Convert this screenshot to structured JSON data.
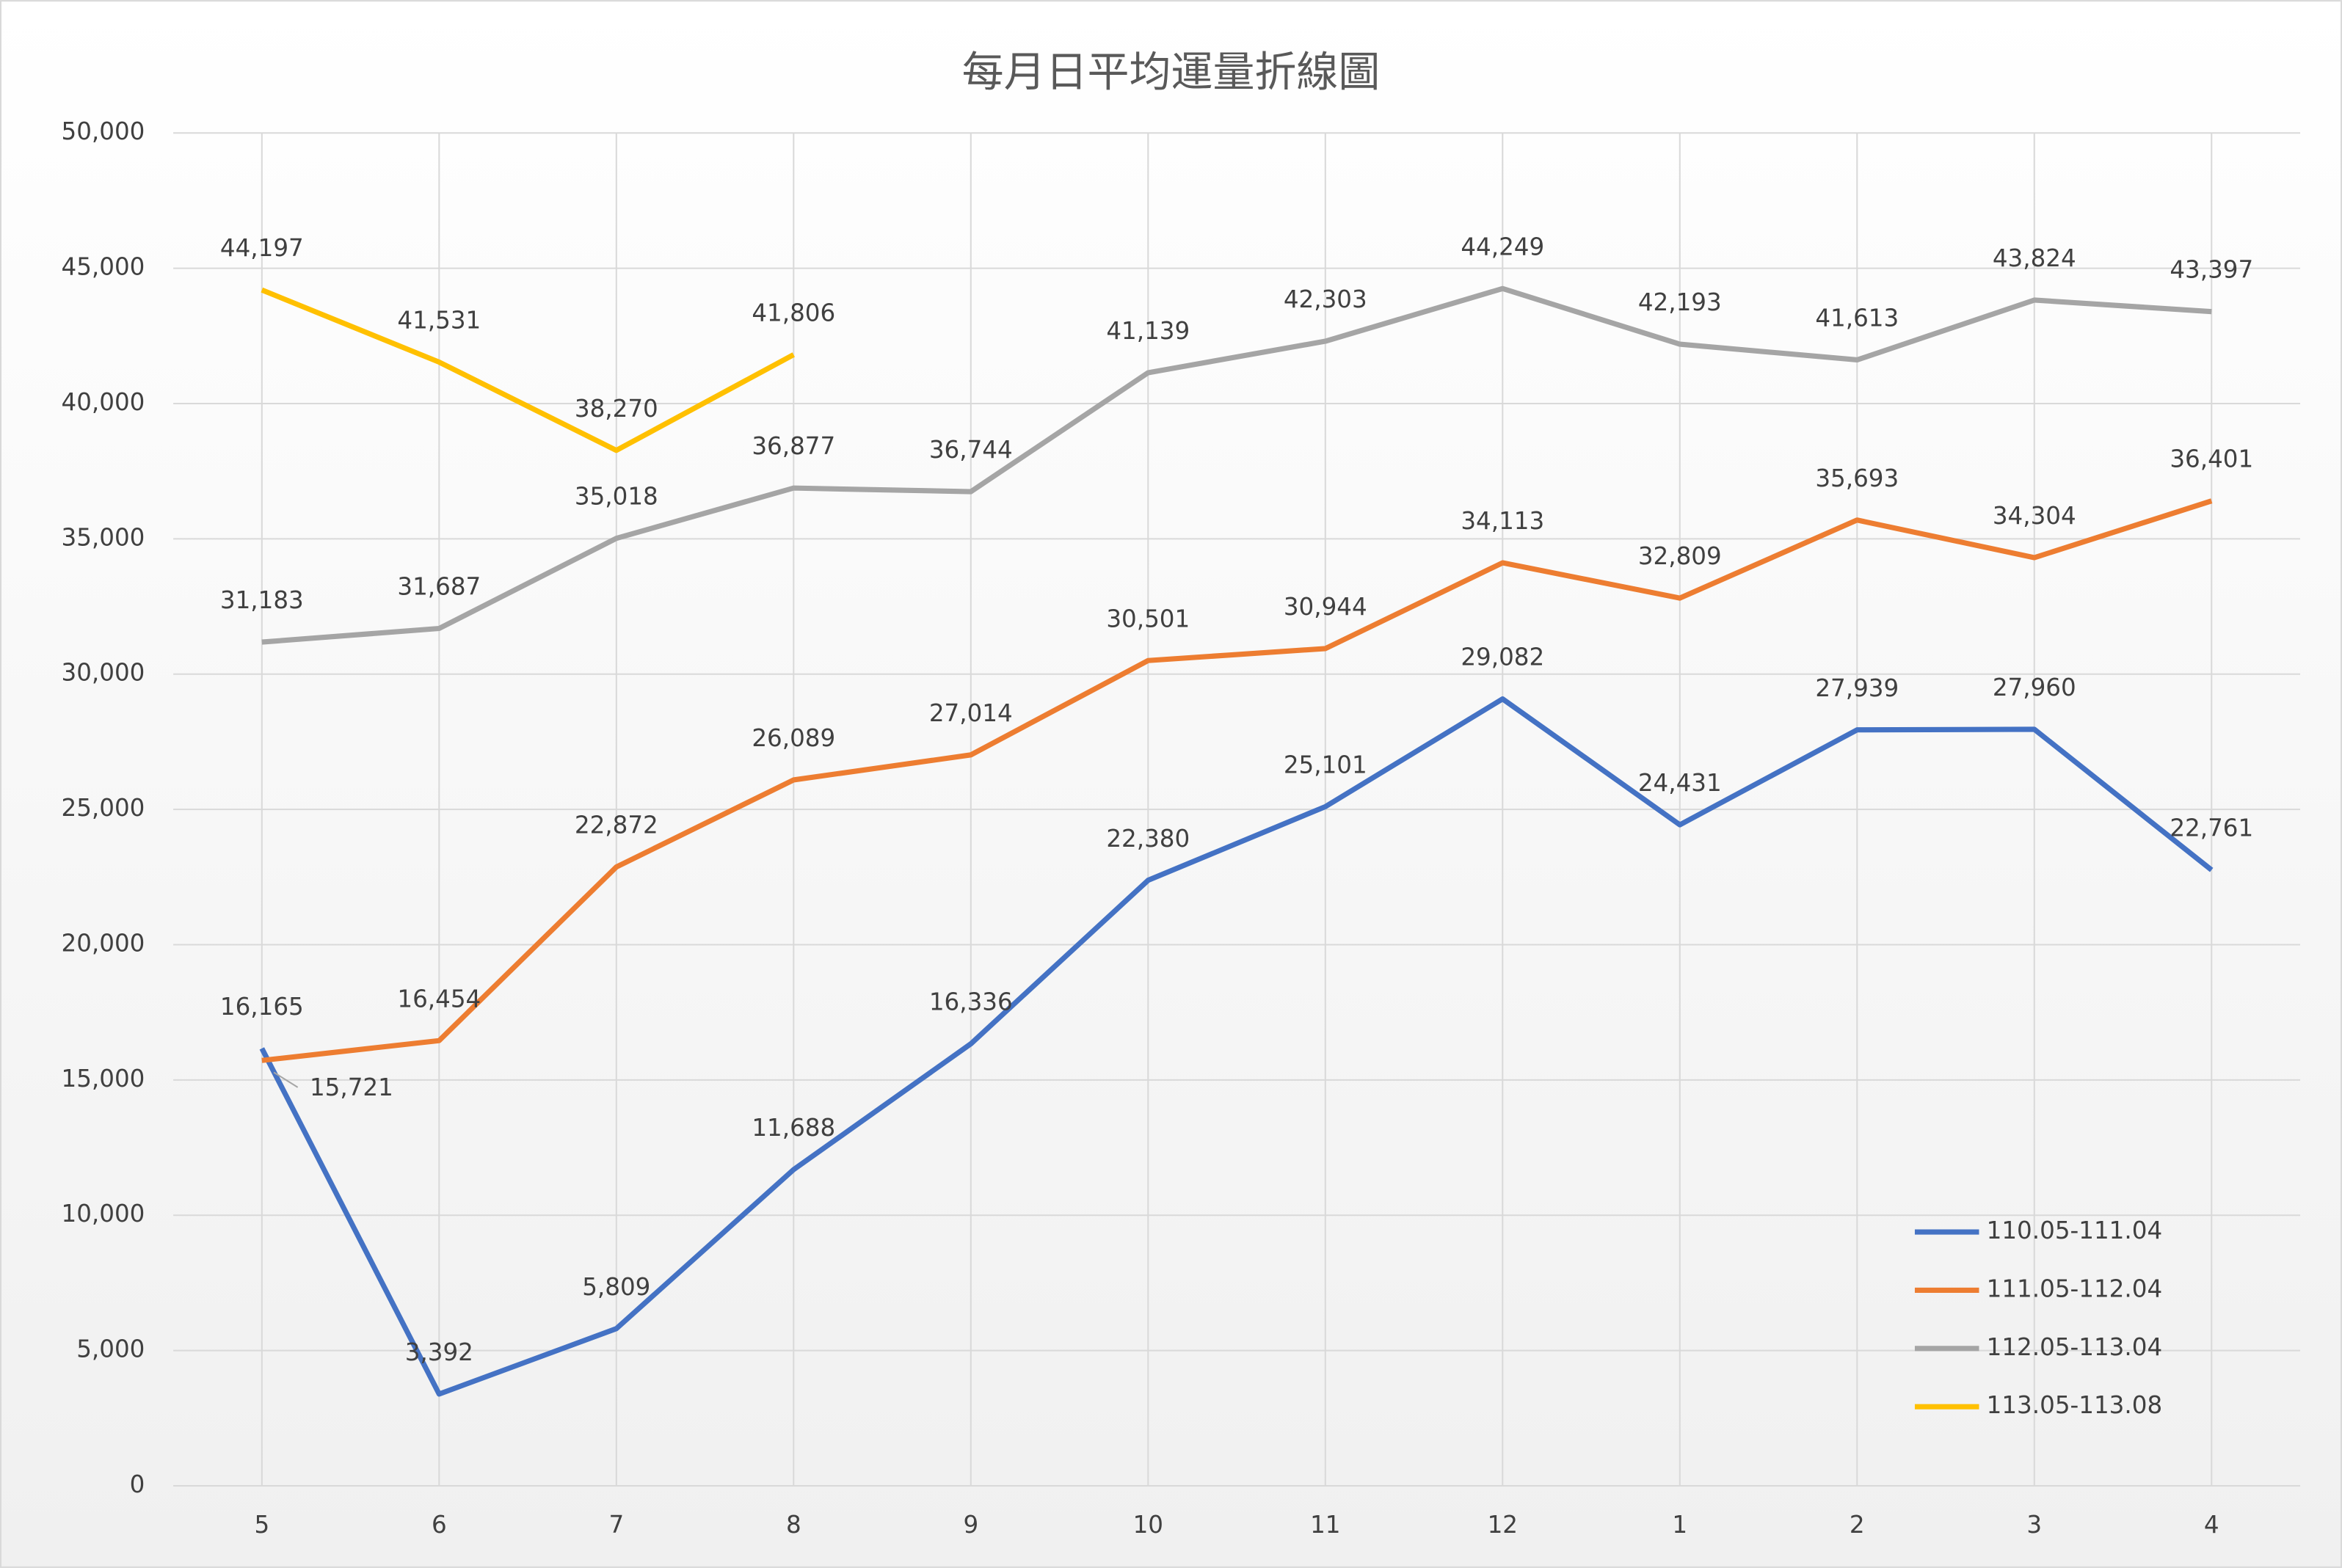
{
  "chart_data": {
    "type": "line",
    "title": "每月日平均運量折線圖",
    "categories": [
      "5",
      "6",
      "7",
      "8",
      "9",
      "10",
      "11",
      "12",
      "1",
      "2",
      "3",
      "4"
    ],
    "ylim": [
      0,
      50000
    ],
    "yticks": [
      0,
      {
        "value": 5000,
        "label": "5,000"
      },
      {
        "value": 10000,
        "label": "10,000"
      },
      {
        "value": 15000,
        "label": "15,000"
      },
      {
        "value": 20000,
        "label": "20,000"
      },
      {
        "value": 25000,
        "label": "25,000"
      },
      {
        "value": 30000,
        "label": "30,000"
      },
      {
        "value": 35000,
        "label": "35,000"
      },
      {
        "value": 40000,
        "label": "40,000"
      },
      {
        "value": 45000,
        "label": "45,000"
      },
      {
        "value": 50000,
        "label": "50,000"
      }
    ],
    "grid": true,
    "legend": "bottom-right",
    "series": [
      {
        "name": "110.05-111.04",
        "color": "#4472c4",
        "values": [
          16165,
          3392,
          5809,
          11688,
          16336,
          22380,
          25101,
          29082,
          24431,
          27939,
          27960,
          22761
        ],
        "value_labels": [
          "16,165",
          "3,392",
          "5,809",
          "11,688",
          "16,336",
          "22,380",
          "25,101",
          "29,082",
          "24,431",
          "27,939",
          "27,960",
          "22,761"
        ]
      },
      {
        "name": "111.05-112.04",
        "color": "#ed7d31",
        "values": [
          15721,
          16454,
          22872,
          26089,
          27014,
          30501,
          30944,
          34113,
          32809,
          35693,
          34304,
          36401
        ],
        "value_labels": [
          "15,721",
          "16,454",
          "22,872",
          "26,089",
          "27,014",
          "30,501",
          "30,944",
          "34,113",
          "32,809",
          "35,693",
          "34,304",
          "36,401"
        ]
      },
      {
        "name": "112.05-113.04",
        "color": "#a5a5a5",
        "values": [
          31183,
          31687,
          35018,
          36877,
          36744,
          41139,
          42303,
          44249,
          42193,
          41613,
          43824,
          43397
        ],
        "value_labels": [
          "31,183",
          "31,687",
          "35,018",
          "36,877",
          "36,744",
          "41,139",
          "42,303",
          "44,249",
          "42,193",
          "41,613",
          "43,824",
          "43,397"
        ]
      },
      {
        "name": "113.05-113.08",
        "color": "#ffc000",
        "values": [
          44197,
          41531,
          38270,
          41806,
          null,
          null,
          null,
          null,
          null,
          null,
          null,
          null
        ],
        "value_labels": [
          "44,197",
          "41,531",
          "38,270",
          "41,806",
          null,
          null,
          null,
          null,
          null,
          null,
          null,
          null
        ]
      }
    ]
  }
}
